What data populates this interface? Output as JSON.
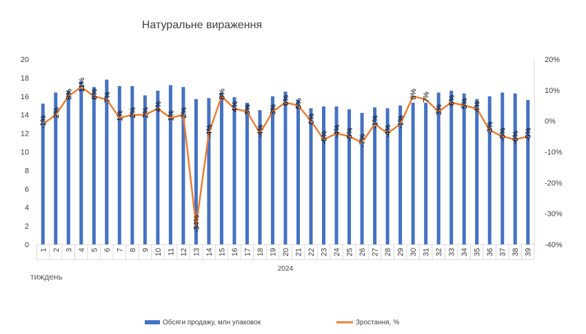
{
  "chart_data": {
    "type": "bar",
    "title": "Натуральне вираження",
    "x_group_label": "2024",
    "x_axis_title": "тиждень",
    "categories": [
      "1",
      "2",
      "3",
      "4",
      "5",
      "6",
      "7",
      "8",
      "9",
      "10",
      "11",
      "12",
      "13",
      "14",
      "15",
      "16",
      "17",
      "18",
      "19",
      "20",
      "21",
      "22",
      "23",
      "24",
      "25",
      "26",
      "27",
      "28",
      "29",
      "30",
      "31",
      "32",
      "33",
      "34",
      "35",
      "36",
      "37",
      "38",
      "39"
    ],
    "y_left": {
      "ticks": [
        0,
        2,
        4,
        6,
        8,
        10,
        12,
        14,
        16,
        18,
        20
      ],
      "min": 0,
      "max": 20
    },
    "y_right": {
      "ticks": [
        "-40%",
        "-30%",
        "-20%",
        "-10%",
        "0%",
        "10%",
        "20%"
      ],
      "min": -40,
      "max": 20
    },
    "series": [
      {
        "name": "Обсяги продажу, млн упаковок",
        "type": "bar",
        "axis": "left",
        "color": "#4472C4",
        "values": [
          15.2,
          16.4,
          16.6,
          17.6,
          17.0,
          17.8,
          17.1,
          17.1,
          16.1,
          16.6,
          17.2,
          17.0,
          15.7,
          15.8,
          16.4,
          15.9,
          15.3,
          14.5,
          16.0,
          16.5,
          15.6,
          14.7,
          14.9,
          14.9,
          14.6,
          14.2,
          14.8,
          14.7,
          15.0,
          15.3,
          15.3,
          16.4,
          16.6,
          16.3,
          15.7,
          16.0,
          16.4,
          16.3,
          15.6
        ]
      },
      {
        "name": "Зростання, %",
        "type": "line",
        "axis": "right",
        "color": "#ED7D31",
        "values": [
          -1,
          2,
          8,
          11,
          8,
          7,
          1,
          2,
          2,
          4,
          1,
          2,
          -34,
          -4,
          8,
          4,
          3,
          -4,
          3,
          6,
          5,
          0,
          -6,
          -4,
          -5,
          -7,
          -1,
          -4,
          -1,
          8,
          7,
          3,
          6,
          5,
          4,
          -3,
          -5,
          -6,
          -5
        ],
        "labels": [
          "-1%",
          "2%",
          "8%",
          "11%",
          "8%",
          "7%",
          "1%",
          "2%",
          "2%",
          "4%",
          "1%",
          "2%",
          "-34%",
          "-4%",
          "8%",
          "4%",
          "3%",
          "-4%",
          "3%",
          "6%",
          "5%",
          "0%",
          "-6%",
          "-4%",
          "-5%",
          "-7%",
          "-1%",
          "-4%",
          "-1%",
          "8%",
          "7%",
          "3%",
          "6%",
          "5%",
          "4%",
          "-3%",
          "-5%",
          "-6%",
          "-5%"
        ]
      }
    ],
    "legend_position": "bottom",
    "grid": false
  }
}
